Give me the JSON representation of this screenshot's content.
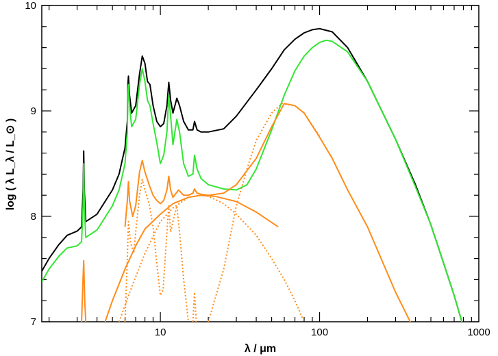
{
  "chart_data": {
    "type": "line",
    "xlabel": "λ / μm",
    "ylabel": "log ( λ L_λ / L_⊙ )",
    "xscale": "log",
    "xlim": [
      1.8,
      1000
    ],
    "ylim": [
      7,
      10
    ],
    "x_ticks": [
      {
        "value": 10,
        "label": "10"
      },
      {
        "value": 100,
        "label": "100"
      },
      {
        "value": 1000,
        "label": "1000"
      }
    ],
    "y_ticks": [
      {
        "value": 7,
        "label": "7"
      },
      {
        "value": 8,
        "label": "8"
      },
      {
        "value": 9,
        "label": "9"
      },
      {
        "value": 10,
        "label": "10"
      }
    ],
    "grid": false,
    "legend": "none",
    "series": [
      {
        "style": "solid",
        "color": "#000000",
        "points": [
          [
            1.8,
            7.48
          ],
          [
            2.0,
            7.6
          ],
          [
            2.3,
            7.73
          ],
          [
            2.6,
            7.82
          ],
          [
            3.0,
            7.86
          ],
          [
            3.2,
            7.9
          ],
          [
            3.27,
            8.25
          ],
          [
            3.3,
            8.62
          ],
          [
            3.33,
            8.25
          ],
          [
            3.4,
            7.95
          ],
          [
            4.0,
            8.02
          ],
          [
            5.0,
            8.25
          ],
          [
            5.5,
            8.4
          ],
          [
            6.0,
            8.65
          ],
          [
            6.2,
            8.9
          ],
          [
            6.25,
            9.25
          ],
          [
            6.3,
            9.33
          ],
          [
            6.4,
            9.15
          ],
          [
            6.6,
            8.98
          ],
          [
            7.0,
            9.05
          ],
          [
            7.4,
            9.35
          ],
          [
            7.7,
            9.52
          ],
          [
            8.0,
            9.45
          ],
          [
            8.3,
            9.28
          ],
          [
            8.6,
            9.25
          ],
          [
            9.0,
            9.05
          ],
          [
            9.5,
            8.9
          ],
          [
            10.0,
            8.85
          ],
          [
            10.5,
            8.88
          ],
          [
            11.0,
            9.05
          ],
          [
            11.3,
            9.27
          ],
          [
            11.6,
            9.1
          ],
          [
            12.0,
            8.98
          ],
          [
            12.7,
            9.12
          ],
          [
            13.2,
            9.05
          ],
          [
            14.0,
            8.9
          ],
          [
            15.0,
            8.82
          ],
          [
            16.0,
            8.82
          ],
          [
            16.4,
            8.9
          ],
          [
            17.0,
            8.82
          ],
          [
            18.0,
            8.8
          ],
          [
            20,
            8.8
          ],
          [
            25,
            8.83
          ],
          [
            30,
            8.95
          ],
          [
            40,
            9.2
          ],
          [
            50,
            9.4
          ],
          [
            60,
            9.58
          ],
          [
            70,
            9.68
          ],
          [
            80,
            9.74
          ],
          [
            90,
            9.77
          ],
          [
            100,
            9.78
          ],
          [
            120,
            9.75
          ],
          [
            150,
            9.6
          ],
          [
            200,
            9.28
          ],
          [
            300,
            8.73
          ],
          [
            400,
            8.3
          ],
          [
            500,
            7.92
          ],
          [
            600,
            7.56
          ],
          [
            700,
            7.25
          ],
          [
            800,
            6.95
          ]
        ]
      },
      {
        "style": "solid",
        "color": "#33e633",
        "points": [
          [
            1.8,
            7.38
          ],
          [
            2.0,
            7.5
          ],
          [
            2.3,
            7.62
          ],
          [
            2.6,
            7.7
          ],
          [
            3.0,
            7.72
          ],
          [
            3.2,
            7.76
          ],
          [
            3.27,
            8.1
          ],
          [
            3.3,
            8.5
          ],
          [
            3.33,
            8.1
          ],
          [
            3.4,
            7.8
          ],
          [
            4.0,
            7.87
          ],
          [
            5.0,
            8.1
          ],
          [
            5.5,
            8.25
          ],
          [
            6.0,
            8.5
          ],
          [
            6.2,
            8.8
          ],
          [
            6.25,
            9.15
          ],
          [
            6.3,
            9.25
          ],
          [
            6.4,
            9.05
          ],
          [
            6.6,
            8.85
          ],
          [
            7.0,
            8.92
          ],
          [
            7.4,
            9.25
          ],
          [
            7.7,
            9.4
          ],
          [
            8.0,
            9.28
          ],
          [
            8.3,
            9.1
          ],
          [
            8.6,
            9.05
          ],
          [
            9.0,
            8.88
          ],
          [
            9.5,
            8.7
          ],
          [
            10.0,
            8.5
          ],
          [
            10.5,
            8.58
          ],
          [
            11.0,
            8.8
          ],
          [
            11.3,
            9.15
          ],
          [
            11.6,
            8.95
          ],
          [
            12.0,
            8.68
          ],
          [
            12.7,
            8.92
          ],
          [
            13.2,
            8.8
          ],
          [
            14.0,
            8.5
          ],
          [
            15.0,
            8.38
          ],
          [
            16.0,
            8.4
          ],
          [
            16.4,
            8.58
          ],
          [
            17.0,
            8.45
          ],
          [
            18.0,
            8.36
          ],
          [
            20,
            8.3
          ],
          [
            25,
            8.26
          ],
          [
            30,
            8.25
          ],
          [
            35,
            8.3
          ],
          [
            40,
            8.45
          ],
          [
            50,
            8.82
          ],
          [
            60,
            9.15
          ],
          [
            70,
            9.38
          ],
          [
            80,
            9.52
          ],
          [
            90,
            9.6
          ],
          [
            100,
            9.65
          ],
          [
            110,
            9.67
          ],
          [
            120,
            9.66
          ],
          [
            150,
            9.56
          ],
          [
            200,
            9.28
          ],
          [
            300,
            8.73
          ],
          [
            400,
            8.28
          ],
          [
            500,
            7.92
          ],
          [
            600,
            7.56
          ],
          [
            700,
            7.25
          ],
          [
            800,
            6.95
          ]
        ]
      },
      {
        "style": "solid",
        "color": "#ff8c1a",
        "points": [
          [
            3.2,
            7.0
          ],
          [
            3.25,
            7.3
          ],
          [
            3.3,
            7.58
          ],
          [
            3.35,
            7.2
          ],
          [
            3.4,
            7.0
          ]
        ]
      },
      {
        "style": "solid",
        "color": "#ff8c1a",
        "points": [
          [
            6.0,
            7.9
          ],
          [
            6.2,
            8.15
          ],
          [
            6.3,
            8.33
          ],
          [
            6.4,
            8.15
          ],
          [
            6.7,
            8.0
          ],
          [
            7.0,
            8.1
          ],
          [
            7.4,
            8.42
          ],
          [
            7.7,
            8.53
          ],
          [
            8.0,
            8.42
          ],
          [
            8.5,
            8.3
          ],
          [
            9.0,
            8.2
          ],
          [
            9.5,
            8.15
          ],
          [
            10.0,
            8.12
          ],
          [
            10.5,
            8.15
          ],
          [
            11.0,
            8.25
          ],
          [
            11.3,
            8.38
          ],
          [
            11.6,
            8.25
          ],
          [
            12.0,
            8.18
          ],
          [
            13.0,
            8.25
          ],
          [
            14.0,
            8.2
          ],
          [
            15.0,
            8.2
          ],
          [
            16.0,
            8.22
          ],
          [
            16.4,
            8.26
          ],
          [
            17.0,
            8.22
          ],
          [
            18.0,
            8.21
          ],
          [
            20,
            8.2
          ],
          [
            25,
            8.22
          ],
          [
            30,
            8.3
          ],
          [
            40,
            8.55
          ],
          [
            50,
            8.85
          ],
          [
            60,
            9.07
          ],
          [
            70,
            9.05
          ],
          [
            80,
            8.98
          ],
          [
            100,
            8.75
          ],
          [
            120,
            8.55
          ],
          [
            150,
            8.25
          ],
          [
            200,
            7.9
          ],
          [
            300,
            7.28
          ],
          [
            400,
            6.9
          ]
        ]
      },
      {
        "style": "solid",
        "color": "#ff8c1a",
        "points": [
          [
            4.5,
            7.0
          ],
          [
            5.0,
            7.2
          ],
          [
            6.0,
            7.5
          ],
          [
            7.0,
            7.72
          ],
          [
            8.0,
            7.88
          ],
          [
            10,
            8.02
          ],
          [
            12,
            8.12
          ],
          [
            15,
            8.18
          ],
          [
            18,
            8.2
          ],
          [
            22,
            8.19
          ],
          [
            30,
            8.14
          ],
          [
            40,
            8.04
          ],
          [
            55,
            7.9
          ]
        ]
      },
      {
        "style": "dotted",
        "color": "#ff8c1a",
        "points": [
          [
            6.0,
            7.0
          ],
          [
            6.2,
            7.6
          ],
          [
            6.3,
            7.95
          ],
          [
            6.5,
            7.75
          ],
          [
            6.8,
            7.65
          ],
          [
            7.0,
            7.85
          ],
          [
            7.4,
            8.2
          ],
          [
            7.7,
            8.35
          ],
          [
            8.0,
            8.25
          ],
          [
            8.5,
            8.12
          ],
          [
            9.0,
            7.9
          ],
          [
            9.5,
            7.55
          ],
          [
            10.0,
            7.25
          ],
          [
            10.4,
            7.3
          ],
          [
            11.0,
            7.85
          ],
          [
            11.3,
            8.1
          ],
          [
            11.6,
            7.85
          ],
          [
            12.0,
            7.95
          ],
          [
            12.7,
            8.1
          ],
          [
            13.2,
            7.85
          ],
          [
            14.0,
            7.4
          ],
          [
            14.5,
            7.2
          ],
          [
            15.0,
            7.0
          ]
        ]
      },
      {
        "style": "dotted",
        "color": "#ff8c1a",
        "points": [
          [
            5.5,
            7.0
          ],
          [
            6.5,
            7.3
          ],
          [
            8,
            7.65
          ],
          [
            10,
            7.95
          ],
          [
            12,
            8.08
          ],
          [
            15,
            8.18
          ],
          [
            18,
            8.2
          ],
          [
            20,
            8.19
          ],
          [
            25,
            8.12
          ],
          [
            30,
            8.02
          ],
          [
            40,
            7.82
          ],
          [
            50,
            7.6
          ],
          [
            60,
            7.4
          ],
          [
            70,
            7.2
          ],
          [
            80,
            7.0
          ]
        ]
      },
      {
        "style": "dotted",
        "color": "#ff8c1a",
        "points": [
          [
            16.0,
            7.0
          ],
          [
            16.4,
            7.28
          ],
          [
            16.8,
            7.0
          ]
        ]
      },
      {
        "style": "dotted",
        "color": "#ff8c1a",
        "points": [
          [
            20,
            7.0
          ],
          [
            25,
            7.5
          ],
          [
            30,
            8.1
          ],
          [
            35,
            8.45
          ],
          [
            40,
            8.72
          ],
          [
            50,
            8.98
          ],
          [
            58,
            9.07
          ],
          [
            70,
            9.05
          ],
          [
            80,
            8.98
          ],
          [
            100,
            8.76
          ]
        ]
      }
    ]
  }
}
